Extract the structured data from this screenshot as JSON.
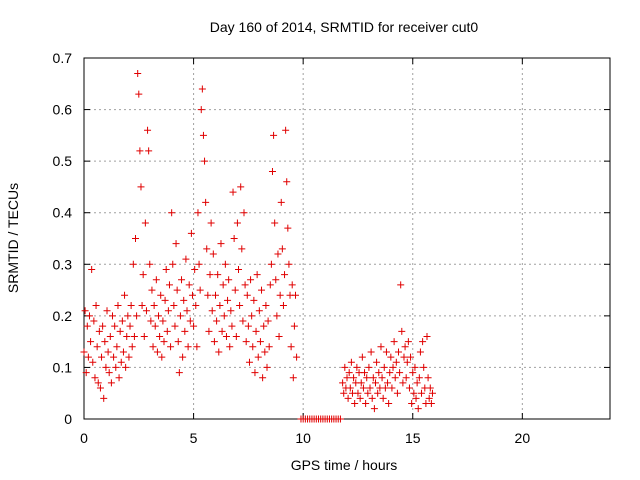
{
  "chart_data": {
    "type": "scatter",
    "title": "Day 160 of 2014, SRMTID for receiver cut0",
    "xlabel": "GPS time / hours",
    "ylabel": "SRMTID / TECUs",
    "xlim": [
      0,
      24
    ],
    "ylim": [
      0,
      0.7
    ],
    "xticks": [
      0,
      5,
      10,
      15,
      20
    ],
    "xtick_labels": [
      "0",
      "5",
      "10",
      "15",
      "20"
    ],
    "yticks": [
      0,
      0.1,
      0.2,
      0.3,
      0.4,
      0.5,
      0.6,
      0.7
    ],
    "ytick_labels": [
      "0",
      "0.1",
      "0.2",
      "0.3",
      "0.4",
      "0.5",
      "0.6",
      "0.7"
    ],
    "grid": true,
    "marker": "+",
    "color": "#e00000",
    "series": [
      {
        "name": "SRMTID",
        "points": [
          [
            0.0,
            0.13
          ],
          [
            0.05,
            0.21
          ],
          [
            0.1,
            0.09
          ],
          [
            0.15,
            0.18
          ],
          [
            0.2,
            0.12
          ],
          [
            0.25,
            0.2
          ],
          [
            0.3,
            0.15
          ],
          [
            0.35,
            0.29
          ],
          [
            0.4,
            0.11
          ],
          [
            0.45,
            0.19
          ],
          [
            0.5,
            0.08
          ],
          [
            0.55,
            0.22
          ],
          [
            0.6,
            0.14
          ],
          [
            0.65,
            0.07
          ],
          [
            0.7,
            0.17
          ],
          [
            0.75,
            0.06
          ],
          [
            0.8,
            0.12
          ],
          [
            0.85,
            0.18
          ],
          [
            0.9,
            0.04
          ],
          [
            0.95,
            0.15
          ],
          [
            1.0,
            0.1
          ],
          [
            1.05,
            0.21
          ],
          [
            1.1,
            0.13
          ],
          [
            1.15,
            0.09
          ],
          [
            1.2,
            0.16
          ],
          [
            1.25,
            0.07
          ],
          [
            1.3,
            0.2
          ],
          [
            1.35,
            0.12
          ],
          [
            1.4,
            0.18
          ],
          [
            1.45,
            0.1
          ],
          [
            1.5,
            0.14
          ],
          [
            1.55,
            0.22
          ],
          [
            1.6,
            0.08
          ],
          [
            1.65,
            0.17
          ],
          [
            1.7,
            0.11
          ],
          [
            1.75,
            0.19
          ],
          [
            1.8,
            0.13
          ],
          [
            1.85,
            0.24
          ],
          [
            1.9,
            0.1
          ],
          [
            1.95,
            0.16
          ],
          [
            2.0,
            0.2
          ],
          [
            2.05,
            0.12
          ],
          [
            2.1,
            0.18
          ],
          [
            2.15,
            0.22
          ],
          [
            2.2,
            0.14
          ],
          [
            2.25,
            0.3
          ],
          [
            2.3,
            0.16
          ],
          [
            2.35,
            0.35
          ],
          [
            2.4,
            0.2
          ],
          [
            2.45,
            0.67
          ],
          [
            2.5,
            0.63
          ],
          [
            2.55,
            0.52
          ],
          [
            2.6,
            0.45
          ],
          [
            2.65,
            0.22
          ],
          [
            2.7,
            0.28
          ],
          [
            2.75,
            0.16
          ],
          [
            2.8,
            0.38
          ],
          [
            2.85,
            0.21
          ],
          [
            2.9,
            0.56
          ],
          [
            2.95,
            0.52
          ],
          [
            3.0,
            0.3
          ],
          [
            3.05,
            0.19
          ],
          [
            3.1,
            0.25
          ],
          [
            3.15,
            0.14
          ],
          [
            3.2,
            0.22
          ],
          [
            3.25,
            0.18
          ],
          [
            3.3,
            0.27
          ],
          [
            3.35,
            0.13
          ],
          [
            3.4,
            0.2
          ],
          [
            3.45,
            0.16
          ],
          [
            3.5,
            0.24
          ],
          [
            3.55,
            0.12
          ],
          [
            3.6,
            0.19
          ],
          [
            3.65,
            0.15
          ],
          [
            3.7,
            0.23
          ],
          [
            3.75,
            0.29
          ],
          [
            3.8,
            0.17
          ],
          [
            3.85,
            0.21
          ],
          [
            3.9,
            0.26
          ],
          [
            3.95,
            0.14
          ],
          [
            4.0,
            0.4
          ],
          [
            4.05,
            0.3
          ],
          [
            4.1,
            0.22
          ],
          [
            4.15,
            0.18
          ],
          [
            4.2,
            0.34
          ],
          [
            4.25,
            0.25
          ],
          [
            4.3,
            0.15
          ],
          [
            4.35,
            0.09
          ],
          [
            4.4,
            0.2
          ],
          [
            4.45,
            0.27
          ],
          [
            4.5,
            0.12
          ],
          [
            4.55,
            0.23
          ],
          [
            4.6,
            0.17
          ],
          [
            4.65,
            0.31
          ],
          [
            4.7,
            0.21
          ],
          [
            4.75,
            0.14
          ],
          [
            4.8,
            0.26
          ],
          [
            4.85,
            0.19
          ],
          [
            4.9,
            0.36
          ],
          [
            4.95,
            0.24
          ],
          [
            5.0,
            0.18
          ],
          [
            5.05,
            0.29
          ],
          [
            5.1,
            0.22
          ],
          [
            5.15,
            0.14
          ],
          [
            5.2,
            0.4
          ],
          [
            5.25,
            0.3
          ],
          [
            5.3,
            0.25
          ],
          [
            5.35,
            0.6
          ],
          [
            5.4,
            0.64
          ],
          [
            5.45,
            0.55
          ],
          [
            5.5,
            0.5
          ],
          [
            5.55,
            0.42
          ],
          [
            5.6,
            0.33
          ],
          [
            5.65,
            0.24
          ],
          [
            5.7,
            0.17
          ],
          [
            5.75,
            0.28
          ],
          [
            5.8,
            0.38
          ],
          [
            5.85,
            0.21
          ],
          [
            5.9,
            0.32
          ],
          [
            5.95,
            0.15
          ],
          [
            6.0,
            0.24
          ],
          [
            6.05,
            0.19
          ],
          [
            6.1,
            0.28
          ],
          [
            6.15,
            0.13
          ],
          [
            6.2,
            0.22
          ],
          [
            6.25,
            0.34
          ],
          [
            6.3,
            0.17
          ],
          [
            6.35,
            0.26
          ],
          [
            6.4,
            0.2
          ],
          [
            6.45,
            0.3
          ],
          [
            6.5,
            0.16
          ],
          [
            6.55,
            0.23
          ],
          [
            6.6,
            0.27
          ],
          [
            6.65,
            0.14
          ],
          [
            6.7,
            0.21
          ],
          [
            6.75,
            0.18
          ],
          [
            6.8,
            0.44
          ],
          [
            6.85,
            0.35
          ],
          [
            6.9,
            0.25
          ],
          [
            6.95,
            0.16
          ],
          [
            7.0,
            0.38
          ],
          [
            7.05,
            0.29
          ],
          [
            7.1,
            0.22
          ],
          [
            7.15,
            0.45
          ],
          [
            7.2,
            0.33
          ],
          [
            7.25,
            0.19
          ],
          [
            7.3,
            0.4
          ],
          [
            7.35,
            0.26
          ],
          [
            7.4,
            0.15
          ],
          [
            7.45,
            0.24
          ],
          [
            7.5,
            0.18
          ],
          [
            7.55,
            0.11
          ],
          [
            7.6,
            0.27
          ],
          [
            7.65,
            0.2
          ],
          [
            7.7,
            0.14
          ],
          [
            7.75,
            0.23
          ],
          [
            7.8,
            0.09
          ],
          [
            7.85,
            0.17
          ],
          [
            7.9,
            0.28
          ],
          [
            7.95,
            0.12
          ],
          [
            8.0,
            0.21
          ],
          [
            8.05,
            0.15
          ],
          [
            8.1,
            0.25
          ],
          [
            8.15,
            0.08
          ],
          [
            8.2,
            0.18
          ],
          [
            8.25,
            0.13
          ],
          [
            8.3,
            0.22
          ],
          [
            8.35,
            0.1
          ],
          [
            8.4,
            0.19
          ],
          [
            8.45,
            0.14
          ],
          [
            8.5,
            0.26
          ],
          [
            8.55,
            0.3
          ],
          [
            8.6,
            0.48
          ],
          [
            8.65,
            0.55
          ],
          [
            8.7,
            0.38
          ],
          [
            8.75,
            0.27
          ],
          [
            8.8,
            0.2
          ],
          [
            8.85,
            0.32
          ],
          [
            8.9,
            0.16
          ],
          [
            8.95,
            0.24
          ],
          [
            9.0,
            0.42
          ],
          [
            9.05,
            0.33
          ],
          [
            9.1,
            0.22
          ],
          [
            9.15,
            0.28
          ],
          [
            9.2,
            0.56
          ],
          [
            9.25,
            0.46
          ],
          [
            9.3,
            0.37
          ],
          [
            9.35,
            0.3
          ],
          [
            9.4,
            0.24
          ],
          [
            9.45,
            0.14
          ],
          [
            9.5,
            0.26
          ],
          [
            9.55,
            0.08
          ],
          [
            9.6,
            0.18
          ],
          [
            9.65,
            0.24
          ],
          [
            9.7,
            0.12
          ],
          [
            9.9,
            0.0
          ],
          [
            10.0,
            0.0
          ],
          [
            10.1,
            0.0
          ],
          [
            10.2,
            0.0
          ],
          [
            10.3,
            0.0
          ],
          [
            10.4,
            0.0
          ],
          [
            10.5,
            0.0
          ],
          [
            10.6,
            0.0
          ],
          [
            10.7,
            0.0
          ],
          [
            10.8,
            0.0
          ],
          [
            10.9,
            0.0
          ],
          [
            11.0,
            0.0
          ],
          [
            11.1,
            0.0
          ],
          [
            11.2,
            0.0
          ],
          [
            11.3,
            0.0
          ],
          [
            11.4,
            0.0
          ],
          [
            11.5,
            0.0
          ],
          [
            11.6,
            0.0
          ],
          [
            11.7,
            0.0
          ],
          [
            11.8,
            0.07
          ],
          [
            11.85,
            0.05
          ],
          [
            11.9,
            0.1
          ],
          [
            11.95,
            0.06
          ],
          [
            12.0,
            0.08
          ],
          [
            12.05,
            0.04
          ],
          [
            12.1,
            0.09
          ],
          [
            12.15,
            0.06
          ],
          [
            12.2,
            0.11
          ],
          [
            12.25,
            0.05
          ],
          [
            12.3,
            0.08
          ],
          [
            12.35,
            0.03
          ],
          [
            12.4,
            0.07
          ],
          [
            12.45,
            0.1
          ],
          [
            12.5,
            0.05
          ],
          [
            12.55,
            0.09
          ],
          [
            12.6,
            0.04
          ],
          [
            12.65,
            0.07
          ],
          [
            12.7,
            0.12
          ],
          [
            12.75,
            0.06
          ],
          [
            12.8,
            0.09
          ],
          [
            12.85,
            0.03
          ],
          [
            12.9,
            0.08
          ],
          [
            12.95,
            0.05
          ],
          [
            13.0,
            0.1
          ],
          [
            13.05,
            0.06
          ],
          [
            13.1,
            0.13
          ],
          [
            13.15,
            0.04
          ],
          [
            13.2,
            0.08
          ],
          [
            13.25,
            0.02
          ],
          [
            13.3,
            0.07
          ],
          [
            13.35,
            0.11
          ],
          [
            13.4,
            0.05
          ],
          [
            13.45,
            0.09
          ],
          [
            13.5,
            0.06
          ],
          [
            13.55,
            0.14
          ],
          [
            13.6,
            0.08
          ],
          [
            13.65,
            0.04
          ],
          [
            13.7,
            0.1
          ],
          [
            13.75,
            0.06
          ],
          [
            13.8,
            0.13
          ],
          [
            13.85,
            0.07
          ],
          [
            13.9,
            0.03
          ],
          [
            13.95,
            0.09
          ],
          [
            14.0,
            0.12
          ],
          [
            14.05,
            0.06
          ],
          [
            14.1,
            0.1
          ],
          [
            14.15,
            0.15
          ],
          [
            14.2,
            0.08
          ],
          [
            14.25,
            0.11
          ],
          [
            14.3,
            0.05
          ],
          [
            14.35,
            0.13
          ],
          [
            14.4,
            0.09
          ],
          [
            14.45,
            0.26
          ],
          [
            14.5,
            0.17
          ],
          [
            14.55,
            0.07
          ],
          [
            14.6,
            0.12
          ],
          [
            14.65,
            0.14
          ],
          [
            14.7,
            0.08
          ],
          [
            14.75,
            0.11
          ],
          [
            14.8,
            0.15
          ],
          [
            14.85,
            0.06
          ],
          [
            14.9,
            0.12
          ],
          [
            14.95,
            0.03
          ],
          [
            15.0,
            0.09
          ],
          [
            15.05,
            0.05
          ],
          [
            15.1,
            0.1
          ],
          [
            15.15,
            0.04
          ],
          [
            15.2,
            0.07
          ],
          [
            15.25,
            0.02
          ],
          [
            15.3,
            0.08
          ],
          [
            15.35,
            0.13
          ],
          [
            15.4,
            0.05
          ],
          [
            15.45,
            0.15
          ],
          [
            15.5,
            0.1
          ],
          [
            15.55,
            0.06
          ],
          [
            15.6,
            0.03
          ],
          [
            15.65,
            0.16
          ],
          [
            15.7,
            0.08
          ],
          [
            15.75,
            0.04
          ],
          [
            15.8,
            0.06
          ],
          [
            15.85,
            0.03
          ],
          [
            15.9,
            0.05
          ]
        ]
      }
    ]
  }
}
